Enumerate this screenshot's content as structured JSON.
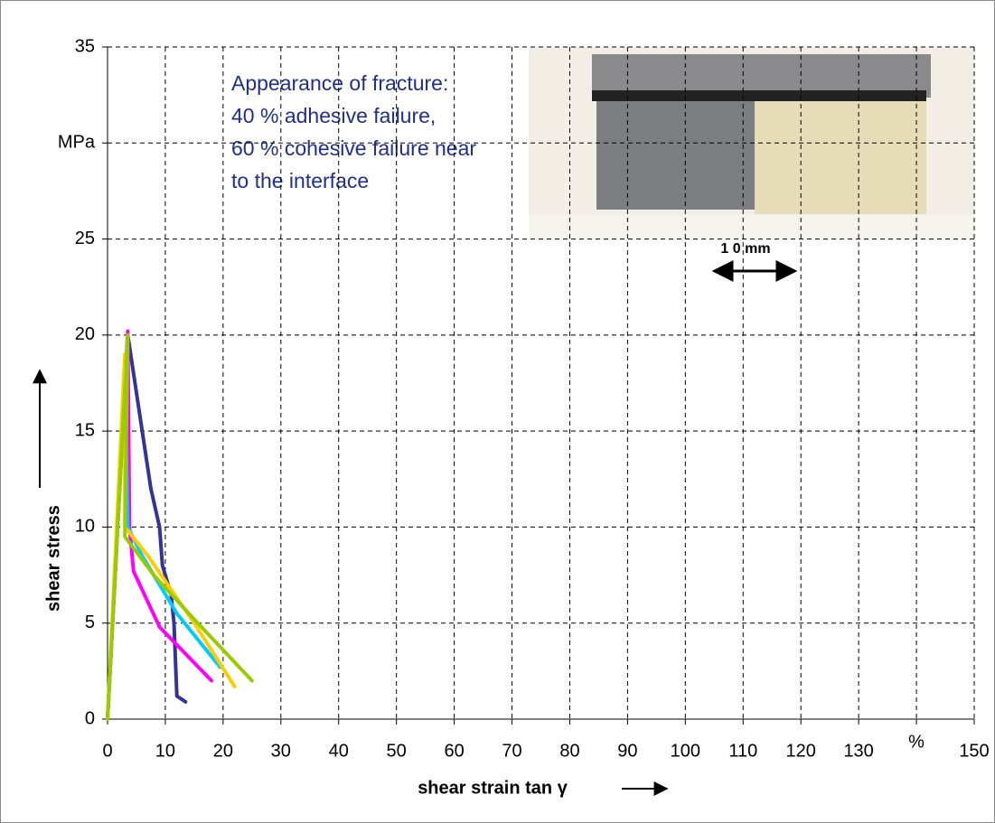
{
  "chart_data": {
    "type": "line",
    "xlabel": "shear strain tan γ",
    "ylabel": "shear stress",
    "xlim": [
      0,
      150
    ],
    "ylim": [
      0,
      35
    ],
    "xticks": [
      0,
      10,
      20,
      30,
      40,
      50,
      60,
      70,
      80,
      90,
      100,
      110,
      120,
      130,
      {
        "value": 140,
        "label": "%"
      },
      150
    ],
    "yticks": [
      0,
      5,
      10,
      15,
      20,
      25,
      {
        "value": 30,
        "label": "MPa"
      },
      35
    ],
    "grid": true,
    "annotations": [
      "Appearance of fracture:",
      "40 % adhesive failure,",
      "60 % cohesive failure near",
      "to the interface"
    ],
    "scale_label": "1 0 mm",
    "series": [
      {
        "color": "#333399",
        "x": [
          0,
          3.5,
          4.5,
          6,
          7.5,
          9,
          9.5,
          11,
          11.5,
          12,
          13.5
        ],
        "values": [
          0,
          20,
          18,
          15,
          12,
          10,
          8,
          6.5,
          5,
          1.2,
          0.9
        ]
      },
      {
        "color": "#ff00ff",
        "x": [
          0,
          3.5,
          3.8,
          4.5,
          9,
          18
        ],
        "values": [
          0,
          20.2,
          10,
          7.7,
          4.8,
          2
        ]
      },
      {
        "color": "#00ccff",
        "x": [
          0,
          3,
          3.5,
          6,
          12,
          19.5
        ],
        "values": [
          0,
          18,
          10,
          8.5,
          5.5,
          2.7
        ]
      },
      {
        "color": "#ffcc00",
        "x": [
          0,
          3,
          3,
          7,
          15,
          22
        ],
        "values": [
          0,
          19,
          10,
          8.5,
          5,
          1.7
        ]
      },
      {
        "color": "#99cc00",
        "x": [
          0,
          3.5,
          3,
          8,
          15,
          25
        ],
        "values": [
          0,
          20,
          9.5,
          7.5,
          5.2,
          2
        ]
      }
    ]
  }
}
